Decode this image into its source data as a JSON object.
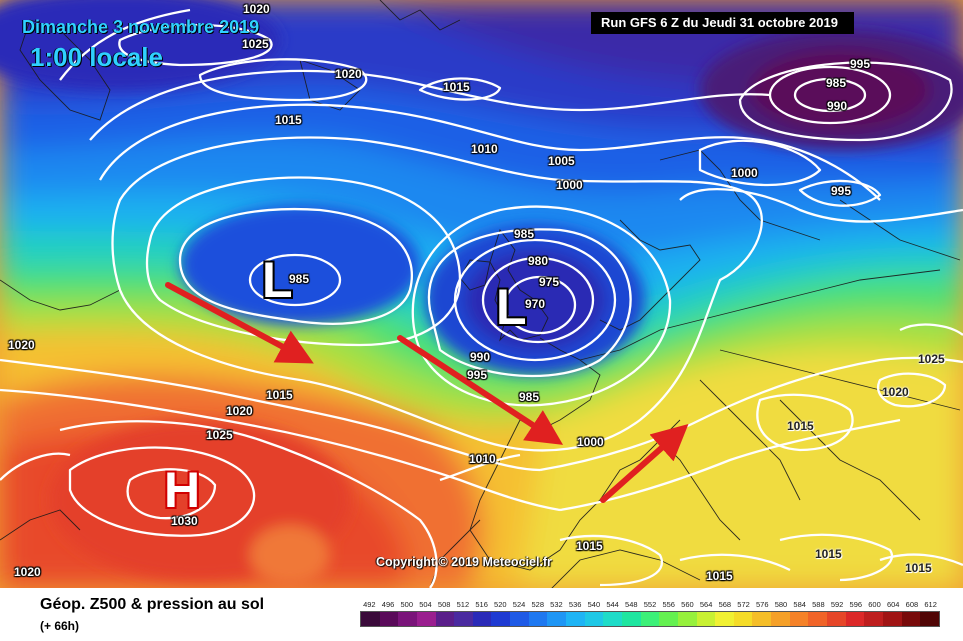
{
  "header": {
    "date": "Dimanche 3 novembre 2019",
    "time": "1:00 locale",
    "run": "Run GFS 6 Z du Jeudi 31 octobre 2019"
  },
  "copyright": "Copyright © 2019 Meteociel.fr",
  "footer": {
    "title": "Géop. Z500 & pression au sol",
    "subtitle": "(+ 66h)"
  },
  "pressure_centers": [
    {
      "id": "low-atlantic",
      "letter": "L",
      "type": "low"
    },
    {
      "id": "low-uk",
      "letter": "L",
      "type": "low"
    },
    {
      "id": "high-azores",
      "letter": "H",
      "type": "high"
    }
  ],
  "isobar_labels": [
    "1020",
    "1025",
    "1020",
    "1015",
    "1015",
    "1010",
    "1005",
    "1000",
    "995",
    "985",
    "990",
    "1000",
    "995",
    "985",
    "980",
    "975",
    "970",
    "985",
    "1020",
    "990",
    "995",
    "985",
    "1015",
    "1020",
    "1025",
    "1000",
    "1010",
    "1030",
    "1020",
    "1015",
    "1015",
    "1015",
    "1020",
    "1025",
    "1015",
    "1015"
  ],
  "color_scale": {
    "labels": [
      "492",
      "496",
      "500",
      "504",
      "508",
      "512",
      "516",
      "520",
      "524",
      "528",
      "532",
      "536",
      "540",
      "544",
      "548",
      "552",
      "556",
      "560",
      "564",
      "568",
      "572",
      "576",
      "580",
      "584",
      "588",
      "592",
      "596",
      "600",
      "604",
      "608",
      "612"
    ],
    "colors": [
      "#3a0a3a",
      "#5a0a5a",
      "#7a147a",
      "#9a1e8f",
      "#5a1e8a",
      "#4a2aa0",
      "#2a2ab8",
      "#1e3ad2",
      "#1e5ae6",
      "#1e78f0",
      "#1e96f5",
      "#1eb4f5",
      "#1ec8e6",
      "#1edcc8",
      "#1ee6a0",
      "#3cf078",
      "#64f050",
      "#96f03c",
      "#c8f032",
      "#f0f032",
      "#f5dc28",
      "#f5be28",
      "#f5a028",
      "#f58228",
      "#f06428",
      "#e64628",
      "#dc2828",
      "#be1e1e",
      "#a01414",
      "#780a0a",
      "#500505"
    ]
  },
  "colors": {
    "title_cyan": "#2fd1ff",
    "arrow_red": "#e02020",
    "isobar": "#ffffff"
  }
}
